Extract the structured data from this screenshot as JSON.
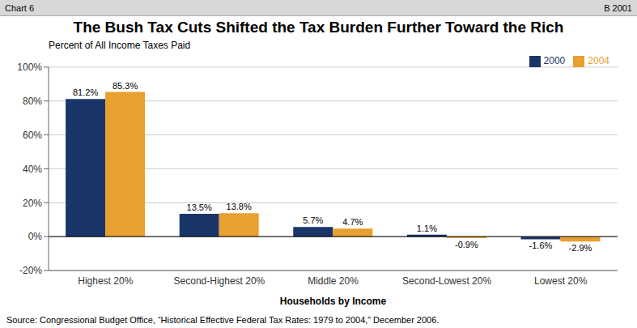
{
  "chart_data": {
    "type": "bar",
    "title": "The Bush Tax Cuts Shifted the Tax Burden Further Toward the Rich",
    "ylabel": "Percent of All Income Taxes Paid",
    "xlabel": "Households by Income",
    "categories": [
      "Highest 20%",
      "Second-Highest 20%",
      "Middle 20%",
      "Second-Lowest 20%",
      "Lowest 20%"
    ],
    "series": [
      {
        "name": "2000",
        "color": "#1a3668",
        "values": [
          81.2,
          13.5,
          5.7,
          1.1,
          -1.6
        ],
        "value_labels": [
          "81.2%",
          "13.5%",
          "5.7%",
          "1.1%",
          "-1.6%"
        ]
      },
      {
        "name": "2004",
        "color": "#e8a030",
        "values": [
          85.3,
          13.8,
          4.7,
          -0.9,
          -2.9
        ],
        "value_labels": [
          "85.3%",
          "13.8%",
          "4.7%",
          "-0.9%",
          "-2.9%"
        ]
      }
    ],
    "ylim": [
      -20,
      100
    ],
    "yticks": [
      {
        "value": -20,
        "label": "-20%"
      },
      {
        "value": 0,
        "label": "0%"
      },
      {
        "value": 20,
        "label": "20%"
      },
      {
        "value": 40,
        "label": "40%"
      },
      {
        "value": 60,
        "label": "60%"
      },
      {
        "value": 80,
        "label": "80%"
      },
      {
        "value": 100,
        "label": "100%"
      }
    ],
    "grid": true,
    "legend": "upper right",
    "data_labels": true,
    "annotations": [
      "Chart 6",
      "B 2001",
      "Source: Congressional Budget Office, “Historical Effective Federal Tax Rates: 1979 to 2004,” December 2006."
    ]
  }
}
